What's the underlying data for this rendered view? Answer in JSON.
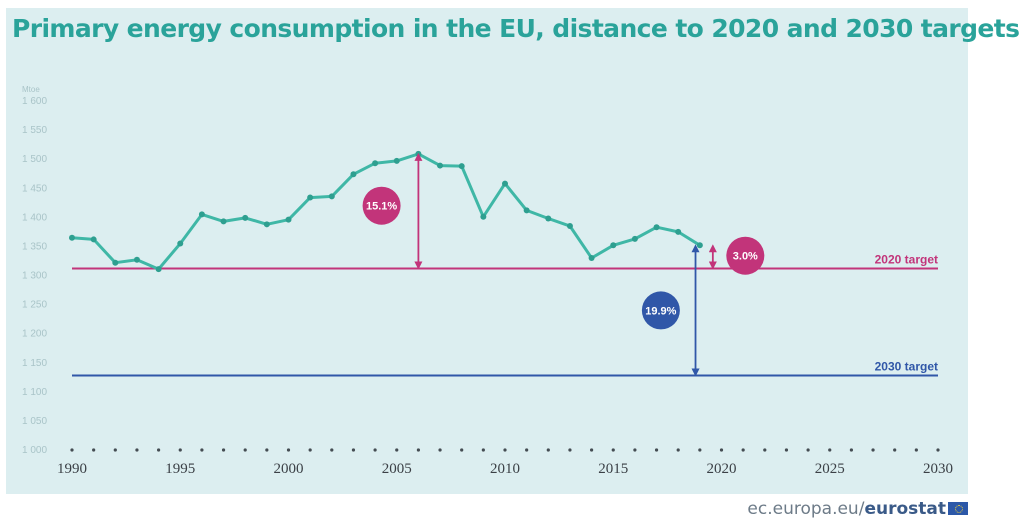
{
  "title": "Primary energy consumption in the EU, distance to 2020 and 2030 targets",
  "footer": {
    "site": "ec.europa.eu/",
    "brand": "eurostat"
  },
  "colors": {
    "background": "#dceef0",
    "series": "#3fb7a6",
    "target_2020": "#c2347a",
    "target_2030": "#3057a8",
    "title": "#2aa39a"
  },
  "chart_data": {
    "type": "line",
    "unit_label": "Mtoe",
    "xlim": [
      1990,
      2030
    ],
    "ylim": [
      1000,
      1600
    ],
    "x_ticks": [
      "1990",
      "1995",
      "2000",
      "2005",
      "2010",
      "2015",
      "2020",
      "2025",
      "2030"
    ],
    "y_ticks": [
      "1 000",
      "1 050",
      "1 100",
      "1 150",
      "1 200",
      "1 250",
      "1 300",
      "1 350",
      "1 400",
      "1 450",
      "1 500",
      "1 550",
      "1 600"
    ],
    "series": [
      {
        "x": [
          1990,
          1991,
          1992,
          1993,
          1994,
          1995,
          1996,
          1997,
          1998,
          1999,
          2000,
          2001,
          2002,
          2003,
          2004,
          2005,
          2006,
          2007,
          2008,
          2009,
          2010,
          2011,
          2012,
          2013,
          2014,
          2015,
          2016,
          2017,
          2018,
          2019
        ],
        "values": [
          1365,
          1362,
          1322,
          1327,
          1311,
          1355,
          1405,
          1393,
          1399,
          1388,
          1396,
          1434,
          1436,
          1474,
          1493,
          1497,
          1509,
          1489,
          1488,
          1401,
          1458,
          1412,
          1398,
          1385,
          1330,
          1352,
          1363,
          1383,
          1375,
          1352
        ]
      }
    ],
    "targets": [
      {
        "label": "2020 target",
        "value": 1312
      },
      {
        "label": "2030 target",
        "value": 1128
      }
    ],
    "annotations": [
      {
        "text": "15.1%",
        "x": 2006,
        "from": 1509,
        "to": 1312
      },
      {
        "text": "3.0%",
        "x": 2019.6,
        "from": 1352,
        "to": 1312
      },
      {
        "text": "19.9%",
        "x": 2018.8,
        "from": 1352,
        "to": 1128
      }
    ]
  }
}
